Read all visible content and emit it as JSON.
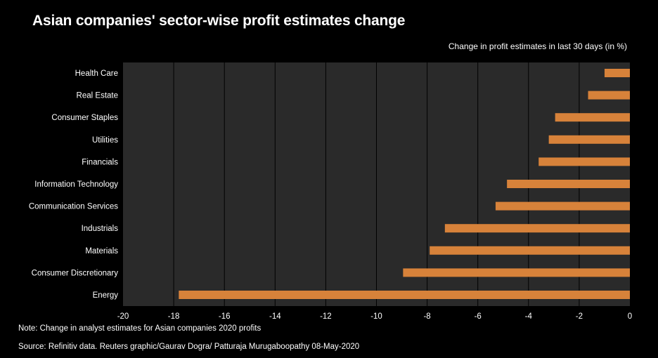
{
  "title": "Asian companies' sector-wise profit estimates change",
  "note": "Note: Change in analyst estimates for Asian companies 2020 profits",
  "source": "Source: Refinitiv data.  Reuters graphic/Gaurav Dogra/ Patturaja Murugaboopathy 08-May-2020",
  "colors": {
    "background": "#000000",
    "plot_bg": "#2a2a2a",
    "bar": "#d7823a",
    "grid": "#000000",
    "text": "#ffffff"
  },
  "chart_data": {
    "type": "bar",
    "orientation": "horizontal",
    "title": "Asian companies' sector-wise profit estimates change",
    "subtitle": "Change in profit estimates in last 30 days (in %)",
    "xlabel": "",
    "ylabel": "",
    "xlim": [
      -20,
      0
    ],
    "xticks": [
      -20,
      -18,
      -16,
      -14,
      -12,
      -10,
      -8,
      -6,
      -4,
      -2,
      0
    ],
    "grid": true,
    "categories": [
      "Health Care",
      "Real Estate",
      "Consumer Staples",
      "Utilities",
      "Financials",
      "Information Technology",
      "Communication Services",
      "Industrials",
      "Materials",
      "Consumer Discretionary",
      "Energy"
    ],
    "values": [
      -1.0,
      -1.65,
      -2.95,
      -3.2,
      -3.6,
      -4.85,
      -5.3,
      -7.3,
      -7.9,
      -8.95,
      -17.8
    ]
  }
}
